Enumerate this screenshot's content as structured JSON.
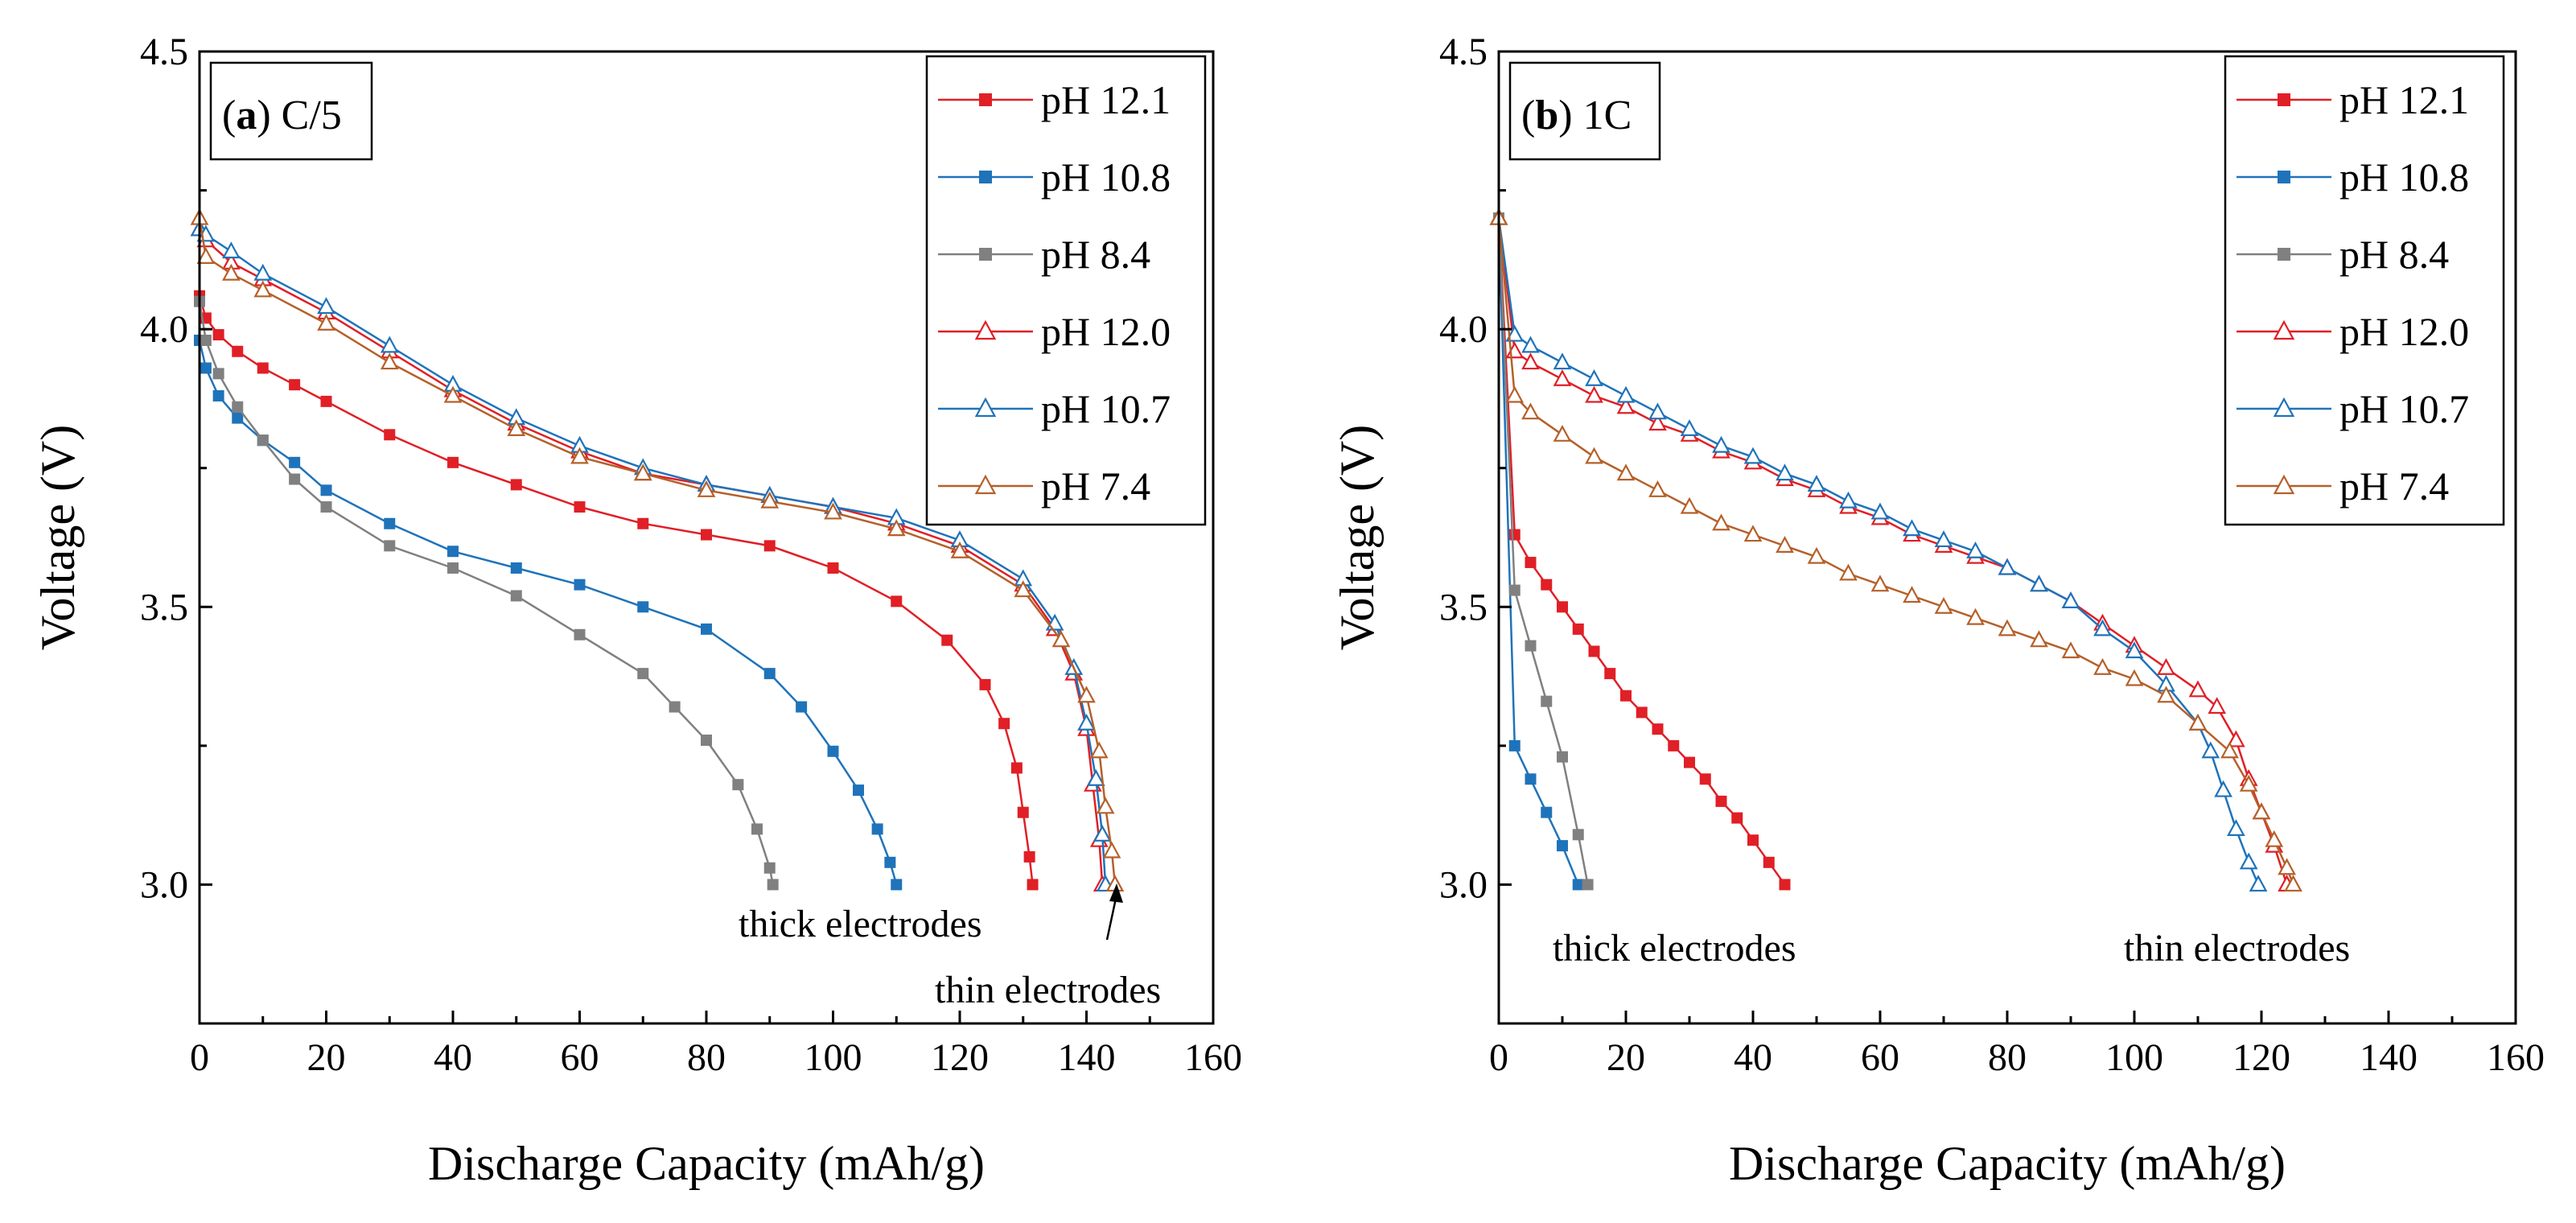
{
  "chart_data": [
    {
      "type": "line",
      "panel": "a",
      "title": "C/5",
      "xlabel": "Discharge Capacity (mAh/g)",
      "ylabel": "Voltage (V)",
      "xlim": [
        0,
        160
      ],
      "ylim": [
        2.75,
        4.5
      ],
      "xticks": [
        "0",
        "20",
        "40",
        "60",
        "80",
        "100",
        "120",
        "140",
        "160"
      ],
      "yticks": [
        "3.0",
        "3.5",
        "4.0",
        "4.5"
      ],
      "grid": false,
      "legend_position": "top-right",
      "annotations": [
        {
          "text": "thick electrodes",
          "at": [
            91,
            2.95
          ]
        },
        {
          "text": "thin electrodes",
          "at": [
            145,
            2.85
          ]
        }
      ],
      "series": [
        {
          "name": "pH 12.1",
          "color": "#e01f26",
          "marker": "square",
          "filled": true,
          "x": [
            0,
            1,
            3,
            6,
            10,
            15,
            20,
            30,
            40,
            50,
            60,
            70,
            80,
            90,
            100,
            110,
            118,
            124,
            127,
            129,
            130,
            131,
            131.5
          ],
          "y": [
            4.06,
            4.02,
            3.99,
            3.96,
            3.93,
            3.9,
            3.87,
            3.81,
            3.76,
            3.72,
            3.68,
            3.65,
            3.63,
            3.61,
            3.57,
            3.51,
            3.44,
            3.36,
            3.29,
            3.21,
            3.13,
            3.05,
            3.0
          ]
        },
        {
          "name": "pH 10.8",
          "color": "#1f73ba",
          "marker": "square",
          "filled": true,
          "x": [
            0,
            1,
            3,
            6,
            10,
            15,
            20,
            30,
            40,
            50,
            60,
            70,
            80,
            90,
            95,
            100,
            104,
            107,
            109,
            110
          ],
          "y": [
            3.98,
            3.93,
            3.88,
            3.84,
            3.8,
            3.76,
            3.71,
            3.65,
            3.6,
            3.57,
            3.54,
            3.5,
            3.46,
            3.38,
            3.32,
            3.24,
            3.17,
            3.1,
            3.04,
            3.0
          ]
        },
        {
          "name": "pH 8.4",
          "color": "#808080",
          "marker": "square",
          "filled": true,
          "x": [
            0,
            1,
            3,
            6,
            10,
            15,
            20,
            30,
            40,
            50,
            60,
            70,
            75,
            80,
            85,
            88,
            90,
            90.5
          ],
          "y": [
            4.05,
            3.98,
            3.92,
            3.86,
            3.8,
            3.73,
            3.68,
            3.61,
            3.57,
            3.52,
            3.45,
            3.38,
            3.32,
            3.26,
            3.18,
            3.1,
            3.03,
            3.0
          ]
        },
        {
          "name": "pH 12.0",
          "color": "#e01f26",
          "marker": "triangle",
          "filled": false,
          "x": [
            0,
            1,
            5,
            10,
            20,
            30,
            40,
            50,
            60,
            70,
            80,
            90,
            100,
            110,
            120,
            130,
            135,
            138,
            140,
            141,
            142,
            142.5
          ],
          "y": [
            4.18,
            4.16,
            4.12,
            4.09,
            4.03,
            3.96,
            3.89,
            3.83,
            3.78,
            3.74,
            3.72,
            3.7,
            3.68,
            3.65,
            3.61,
            3.54,
            3.46,
            3.38,
            3.28,
            3.18,
            3.08,
            3.0
          ]
        },
        {
          "name": "pH 10.7",
          "color": "#1f73ba",
          "marker": "triangle",
          "filled": false,
          "x": [
            0,
            1,
            5,
            10,
            20,
            30,
            40,
            50,
            60,
            70,
            80,
            90,
            100,
            110,
            120,
            130,
            135,
            138,
            140,
            141.5,
            142.5,
            143
          ],
          "y": [
            4.18,
            4.17,
            4.14,
            4.1,
            4.04,
            3.97,
            3.9,
            3.84,
            3.79,
            3.75,
            3.72,
            3.7,
            3.68,
            3.66,
            3.62,
            3.55,
            3.47,
            3.39,
            3.29,
            3.19,
            3.09,
            3.0
          ]
        },
        {
          "name": "pH 7.4",
          "color": "#b5602a",
          "marker": "triangle",
          "filled": false,
          "x": [
            0,
            1,
            5,
            10,
            20,
            30,
            40,
            50,
            60,
            70,
            80,
            90,
            100,
            110,
            120,
            130,
            136,
            140,
            142,
            143,
            144,
            144.5
          ],
          "y": [
            4.2,
            4.13,
            4.1,
            4.07,
            4.01,
            3.94,
            3.88,
            3.82,
            3.77,
            3.74,
            3.71,
            3.69,
            3.67,
            3.64,
            3.6,
            3.53,
            3.44,
            3.34,
            3.24,
            3.14,
            3.06,
            3.0
          ]
        }
      ]
    },
    {
      "type": "line",
      "panel": "b",
      "title": "1C",
      "xlabel": "Discharge Capacity (mAh/g)",
      "ylabel": "Voltage (V)",
      "xlim": [
        0,
        160
      ],
      "ylim": [
        2.75,
        4.5
      ],
      "xticks": [
        "0",
        "20",
        "40",
        "60",
        "80",
        "100",
        "120",
        "140",
        "160"
      ],
      "yticks": [
        "3.0",
        "3.5",
        "4.0",
        "4.5"
      ],
      "grid": false,
      "legend_position": "top-right",
      "annotations": [
        {
          "text": "thick electrodes",
          "at": [
            27,
            2.88
          ]
        },
        {
          "text": "thin electrodes",
          "at": [
            120,
            2.88
          ]
        }
      ],
      "series": [
        {
          "name": "pH 12.1",
          "color": "#e01f26",
          "marker": "square",
          "filled": true,
          "x": [
            0,
            2.5,
            5,
            7.5,
            10,
            12.5,
            15,
            17.5,
            20,
            22.5,
            25,
            27.5,
            30,
            32.5,
            35,
            37.5,
            40,
            42.5,
            45
          ],
          "y": [
            4.2,
            3.63,
            3.58,
            3.54,
            3.5,
            3.46,
            3.42,
            3.38,
            3.34,
            3.31,
            3.28,
            3.25,
            3.22,
            3.19,
            3.15,
            3.12,
            3.08,
            3.04,
            3.0
          ]
        },
        {
          "name": "pH 10.8",
          "color": "#1f73ba",
          "marker": "square",
          "filled": true,
          "x": [
            0,
            2.5,
            5,
            7.5,
            10,
            12.5
          ],
          "y": [
            4.2,
            3.25,
            3.19,
            3.13,
            3.07,
            3.0
          ]
        },
        {
          "name": "pH 8.4",
          "color": "#808080",
          "marker": "square",
          "filled": true,
          "x": [
            0,
            2.5,
            5,
            7.5,
            10,
            12.5,
            14
          ],
          "y": [
            4.2,
            3.53,
            3.43,
            3.33,
            3.23,
            3.09,
            3.0
          ]
        },
        {
          "name": "pH 12.0",
          "color": "#e01f26",
          "marker": "triangle",
          "filled": false,
          "x": [
            0,
            2.5,
            5,
            10,
            15,
            20,
            25,
            30,
            35,
            40,
            45,
            50,
            55,
            60,
            65,
            70,
            75,
            80,
            85,
            90,
            95,
            100,
            105,
            110,
            113,
            116,
            118,
            120,
            122,
            124
          ],
          "y": [
            4.2,
            3.96,
            3.94,
            3.91,
            3.88,
            3.86,
            3.83,
            3.81,
            3.78,
            3.76,
            3.73,
            3.71,
            3.68,
            3.66,
            3.63,
            3.61,
            3.59,
            3.57,
            3.54,
            3.51,
            3.47,
            3.43,
            3.39,
            3.35,
            3.32,
            3.26,
            3.19,
            3.13,
            3.07,
            3.0
          ]
        },
        {
          "name": "pH 10.7",
          "color": "#1f73ba",
          "marker": "triangle",
          "filled": false,
          "x": [
            0,
            2.5,
            5,
            10,
            15,
            20,
            25,
            30,
            35,
            40,
            45,
            50,
            55,
            60,
            65,
            70,
            75,
            80,
            85,
            90,
            95,
            100,
            105,
            110,
            112,
            114,
            116,
            118,
            119.5
          ],
          "y": [
            4.2,
            3.99,
            3.97,
            3.94,
            3.91,
            3.88,
            3.85,
            3.82,
            3.79,
            3.77,
            3.74,
            3.72,
            3.69,
            3.67,
            3.64,
            3.62,
            3.6,
            3.57,
            3.54,
            3.51,
            3.46,
            3.42,
            3.36,
            3.29,
            3.24,
            3.17,
            3.1,
            3.04,
            3.0
          ]
        },
        {
          "name": "pH 7.4",
          "color": "#b5602a",
          "marker": "triangle",
          "filled": false,
          "x": [
            0,
            2.5,
            5,
            10,
            15,
            20,
            25,
            30,
            35,
            40,
            45,
            50,
            55,
            60,
            65,
            70,
            75,
            80,
            85,
            90,
            95,
            100,
            105,
            110,
            115,
            118,
            120,
            122,
            124,
            125
          ],
          "y": [
            4.2,
            3.88,
            3.85,
            3.81,
            3.77,
            3.74,
            3.71,
            3.68,
            3.65,
            3.63,
            3.61,
            3.59,
            3.56,
            3.54,
            3.52,
            3.5,
            3.48,
            3.46,
            3.44,
            3.42,
            3.39,
            3.37,
            3.34,
            3.29,
            3.24,
            3.18,
            3.13,
            3.08,
            3.03,
            3.0
          ]
        }
      ]
    }
  ]
}
